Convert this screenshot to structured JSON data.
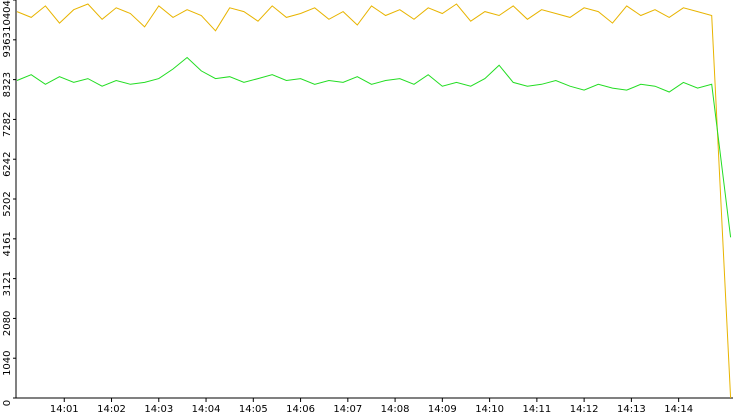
{
  "chart_data": {
    "type": "line",
    "x": [
      840.0,
      840.3,
      840.6,
      840.9,
      841.2,
      841.5,
      841.8,
      842.1,
      842.4,
      842.7,
      843,
      843.3,
      843.6,
      843.9,
      844.2,
      844.5,
      844.8,
      845.1,
      845.4,
      845.7,
      846,
      846.3,
      846.6,
      846.9,
      847.2,
      847.5,
      847.8,
      848.1,
      848.4,
      848.7,
      849,
      849.3,
      849.6,
      849.9,
      850.2,
      850.5,
      850.8,
      851.1,
      851.4,
      851.7,
      852,
      852.3,
      852.6,
      852.9,
      853.2,
      853.5,
      853.8,
      854.1,
      854.4,
      854.7,
      855.1
    ],
    "series": [
      {
        "color": "#e8b400",
        "values": [
          10100,
          9950,
          10250,
          9800,
          10150,
          10300,
          9900,
          10200,
          10050,
          9700,
          10250,
          9950,
          10150,
          10000,
          9600,
          10200,
          10100,
          9850,
          10250,
          9950,
          10050,
          10200,
          9900,
          10100,
          9750,
          10250,
          10000,
          10150,
          9900,
          10200,
          10050,
          10300,
          9850,
          10100,
          10000,
          10250,
          9900,
          10150,
          10050,
          9950,
          10200,
          10100,
          9800,
          10250,
          10000,
          10150,
          9950,
          10200,
          10100,
          10000,
          0
        ]
      },
      {
        "color": "#22dd22",
        "values": [
          8300,
          8450,
          8200,
          8400,
          8250,
          8350,
          8150,
          8300,
          8200,
          8250,
          8350,
          8600,
          8900,
          8550,
          8350,
          8400,
          8250,
          8350,
          8450,
          8300,
          8350,
          8200,
          8300,
          8250,
          8400,
          8200,
          8300,
          8350,
          8200,
          8450,
          8150,
          8250,
          8150,
          8350,
          8700,
          8250,
          8150,
          8200,
          8300,
          8150,
          8050,
          8200,
          8100,
          8050,
          8200,
          8150,
          8000,
          8250,
          8100,
          8200,
          4200
        ]
      }
    ],
    "xlim": [
      840,
      855.15
    ],
    "xticks": [
      {
        "value": 841,
        "label": "14:01"
      },
      {
        "value": 842,
        "label": "14:02"
      },
      {
        "value": 843,
        "label": "14:03"
      },
      {
        "value": 844,
        "label": "14:04"
      },
      {
        "value": 845,
        "label": "14:05"
      },
      {
        "value": 846,
        "label": "14:06"
      },
      {
        "value": 847,
        "label": "14:07"
      },
      {
        "value": 848,
        "label": "14:08"
      },
      {
        "value": 849,
        "label": "14:09"
      },
      {
        "value": 850,
        "label": "14:10"
      },
      {
        "value": 851,
        "label": "14:11"
      },
      {
        "value": 852,
        "label": "14:12"
      },
      {
        "value": 853,
        "label": "14:13"
      },
      {
        "value": 854,
        "label": "14:14"
      }
    ],
    "ylim": [
      0,
      10404
    ],
    "yticks": [
      0,
      1040,
      2080,
      3121,
      4161,
      5202,
      6242,
      7282,
      8323,
      9363,
      10404
    ]
  }
}
